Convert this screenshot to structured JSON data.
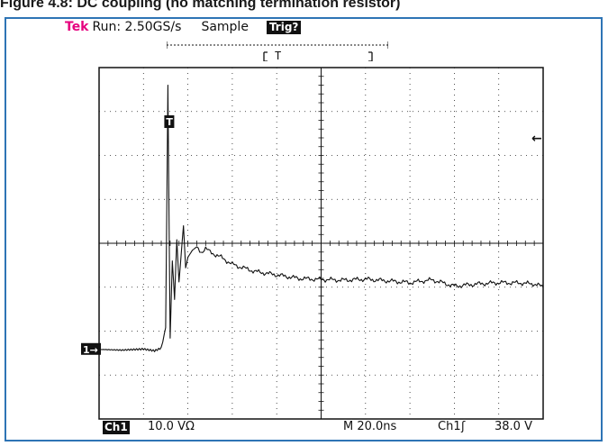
{
  "figure": {
    "title": "Figure 4.8: DC coupling (no matching termination resistor)"
  },
  "scope": {
    "brand": "Tek",
    "run_status": "Run: 2.50GS/s",
    "acq_mode": "Sample",
    "trig_status": "Trig?",
    "trig_window_label": "T",
    "trigger_marker": "T",
    "ch1_marker": "1→",
    "trig_level_arrow": "←",
    "channel": "Ch1",
    "volts_per_div": "10.0 VΩ",
    "timebase": "M 20.0ns",
    "trig_source": "Ch1",
    "trig_slope": "ʃ",
    "trig_level": "38.0 V",
    "trace_color": "#111111"
  },
  "chart_data": {
    "type": "line",
    "title": "",
    "xlabel": "",
    "ylabel": "",
    "x_unit": "ns",
    "y_unit": "V",
    "xlim": [
      0,
      200
    ],
    "ylim": [
      -50,
      50
    ],
    "grid": true,
    "series": [
      {
        "x": [
          0,
          10,
          20,
          25,
          28,
          30,
          31,
          32,
          33,
          34,
          35,
          36,
          37,
          38,
          39,
          40,
          42,
          44,
          46,
          48,
          50,
          55,
          60,
          70,
          80,
          90,
          100,
          110,
          120,
          130,
          140,
          150,
          160,
          170,
          180,
          190,
          196,
          200
        ],
        "y": [
          -30.2,
          -30.4,
          -30.1,
          -30.6,
          -29.8,
          -24,
          45,
          -27,
          -5,
          -16,
          1,
          -11,
          -3,
          5,
          -7,
          -4,
          -2,
          -1,
          -2.5,
          -1.5,
          -2.5,
          -4,
          -6,
          -8,
          -9,
          -10,
          -10.3,
          -10.5,
          -10.2,
          -10.7,
          -11.2,
          -10.4,
          -12.2,
          -11.6,
          -11.2,
          -11.3,
          -11.6,
          -12.4
        ]
      }
    ]
  }
}
